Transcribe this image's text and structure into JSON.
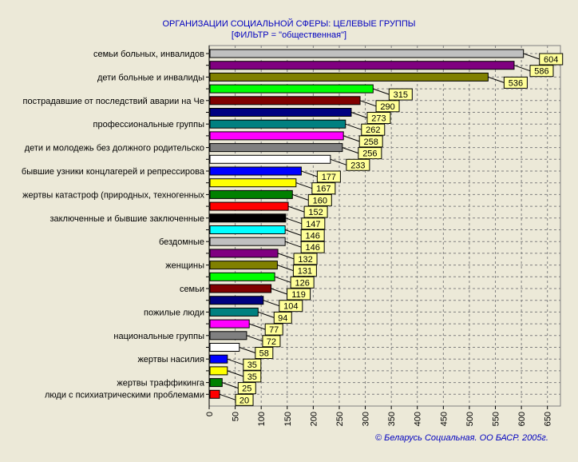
{
  "chart_data": {
    "type": "bar",
    "orientation": "horizontal",
    "title": "ОРГАНИЗАЦИИ СОЦИАЛЬНОЙ СФЕРЫ: ЦЕЛЕВЫЕ ГРУППЫ",
    "subtitle": "[ФИЛЬТР = \"общественная\"]",
    "footer": "© Беларусь Социальная. ОО БАСР. 2005г.",
    "xlim": [
      0,
      675
    ],
    "xticks": [
      0,
      50,
      100,
      150,
      200,
      250,
      300,
      350,
      400,
      450,
      500,
      550,
      600,
      650
    ],
    "grid": true,
    "categories": [
      "семьи больных, инвалидов",
      "",
      "дети больные и инвалиды",
      "",
      "пострадавшие от последствий аварии на Че",
      "",
      "профессиональные группы",
      "",
      "дети и молодежь без должного родительско",
      "",
      "бывшие узники концлагерей и репрессирова",
      "",
      "жертвы катастроф (природных, техногенных",
      "",
      "заключенные и бывшие заключенные",
      "",
      "бездомные",
      "",
      "женщины",
      "",
      "семьи",
      "",
      "пожилые люди",
      "",
      "национальные группы",
      "",
      "жертвы насилия",
      "",
      "жертвы траффикинга",
      "люди с психиатрическими проблемами"
    ],
    "values": [
      604,
      586,
      536,
      315,
      290,
      273,
      262,
      258,
      256,
      233,
      177,
      167,
      160,
      152,
      147,
      146,
      146,
      132,
      131,
      126,
      119,
      104,
      94,
      77,
      72,
      58,
      35,
      35,
      25,
      20
    ],
    "colors": [
      "#c0c0c0",
      "#800080",
      "#808000",
      "#00ff00",
      "#800000",
      "#000080",
      "#008080",
      "#ff00ff",
      "#808080",
      "#ffffff",
      "#0000ff",
      "#ffff00",
      "#008000",
      "#ff0000",
      "#000000",
      "#00ffff",
      "#c0c0c0",
      "#800080",
      "#808000",
      "#00ff00",
      "#800000",
      "#000080",
      "#008080",
      "#ff00ff",
      "#808080",
      "#ffffff",
      "#0000ff",
      "#ffff00",
      "#008000",
      "#ff0000"
    ],
    "label_fill": "#ffff99"
  }
}
